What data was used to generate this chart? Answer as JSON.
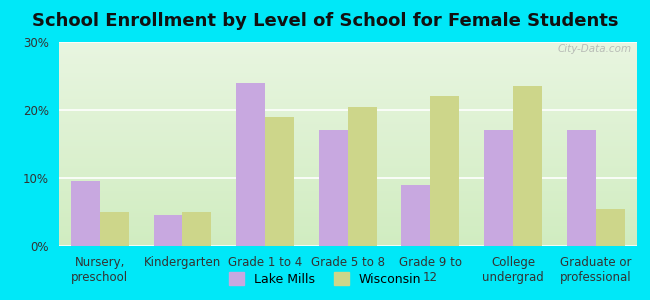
{
  "title": "School Enrollment by Level of School for Female Students",
  "categories": [
    "Nursery,\npreschool",
    "Kindergarten",
    "Grade 1 to 4",
    "Grade 5 to 8",
    "Grade 9 to\n12",
    "College\nundergrad",
    "Graduate or\nprofessional"
  ],
  "lake_mills": [
    9.5,
    4.5,
    24.0,
    17.0,
    9.0,
    17.0,
    17.0
  ],
  "wisconsin": [
    5.0,
    5.0,
    19.0,
    20.5,
    22.0,
    23.5,
    5.5
  ],
  "lake_mills_color": "#c8a8e0",
  "wisconsin_color": "#cdd68a",
  "background_outer": "#00e8f8",
  "background_inner_top": "#e8f5e0",
  "background_inner_bottom": "#d0ecc0",
  "grid_color": "#ffffff",
  "ylim": [
    0,
    30
  ],
  "yticks": [
    0,
    10,
    20,
    30
  ],
  "bar_width": 0.35,
  "legend_labels": [
    "Lake Mills",
    "Wisconsin"
  ],
  "watermark": "City-Data.com",
  "title_fontsize": 13,
  "tick_fontsize": 8.5,
  "legend_fontsize": 9
}
